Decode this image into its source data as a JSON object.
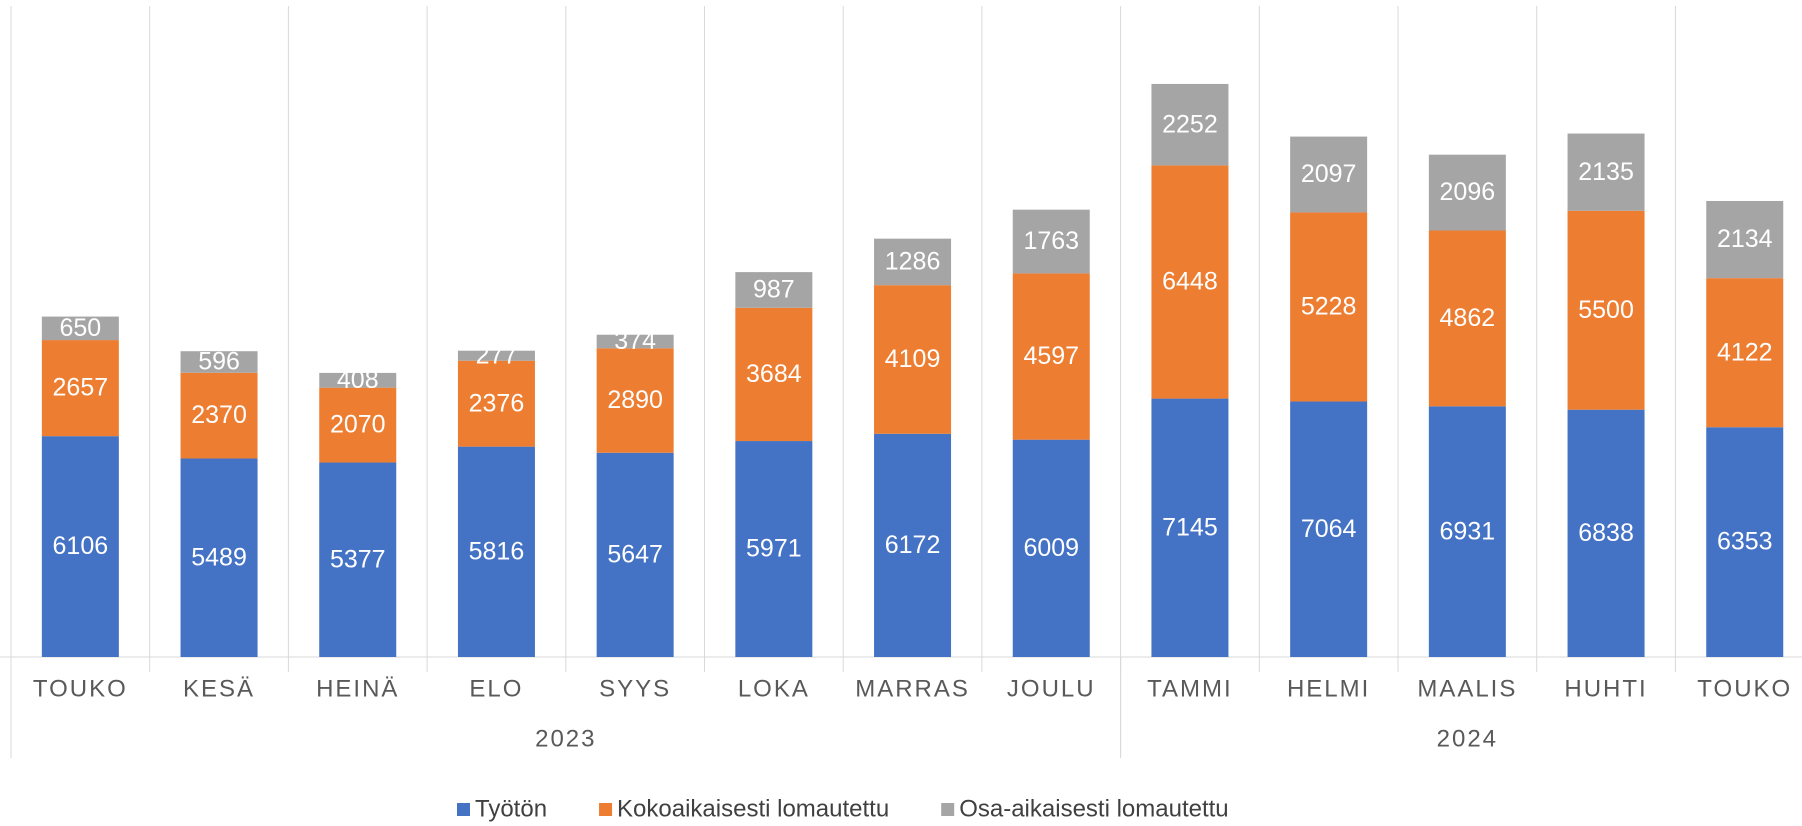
{
  "chart_data": {
    "type": "stacked_bar",
    "categories": [
      "TOUKO",
      "KESÄ",
      "HEINÄ",
      "ELO",
      "SYYS",
      "LOKA",
      "MARRAS",
      "JOULU",
      "TAMMI",
      "HELMI",
      "MAALIS",
      "HUHTI",
      "TOUKO"
    ],
    "x_groups": [
      {
        "label": "2023",
        "size": 8
      },
      {
        "label": "2024",
        "size": 5
      }
    ],
    "series": [
      {
        "name": "Työtön",
        "color": "#4472c4",
        "values": [
          6106,
          5489,
          5377,
          5816,
          5647,
          5971,
          6172,
          6009,
          7145,
          7064,
          6931,
          6838,
          6353
        ]
      },
      {
        "name": "Kokoaikaisesti lomautettu",
        "color": "#ed7d31",
        "values": [
          2657,
          2370,
          2070,
          2376,
          2890,
          3684,
          4109,
          4597,
          6448,
          5228,
          4862,
          5500,
          4122
        ]
      },
      {
        "name": "Osa-aikaisesti lomautettu",
        "color": "#a5a5a5",
        "values": [
          650,
          596,
          408,
          277,
          374,
          987,
          1286,
          1763,
          2252,
          2097,
          2096,
          2135,
          2134
        ]
      }
    ],
    "ylim": [
      0,
      18000
    ],
    "legend": "bottom"
  }
}
